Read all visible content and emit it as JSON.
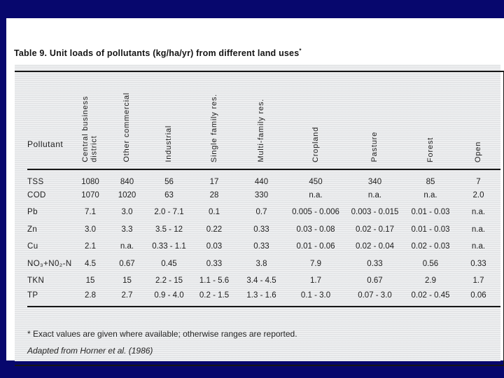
{
  "title": {
    "text": "Table 9. Unit loads of pollutants (kg/ha/yr) from different land uses",
    "superscript": "*"
  },
  "table": {
    "row_header": "Pollutant",
    "columns": [
      "Central business\ndistrict",
      "Other commercial",
      "Industrial",
      "Single family res.",
      "Multi-family res.",
      "Cropland",
      "Pasture",
      "Forest",
      "Open"
    ],
    "rows": [
      {
        "label": "TSS",
        "values": [
          "1080",
          "840",
          "56",
          "17",
          "440",
          "450",
          "340",
          "85",
          "7"
        ]
      },
      {
        "label": "COD",
        "values": [
          "1070",
          "1020",
          "63",
          "28",
          "330",
          "n.a.",
          "n.a.",
          "n.a.",
          "2.0"
        ]
      },
      {
        "label": "Pb",
        "values": [
          "7.1",
          "3.0",
          "2.0 - 7.1",
          "0.1",
          "0.7",
          "0.005 - 0.006",
          "0.003 - 0.015",
          "0.01 - 0.03",
          "n.a."
        ]
      },
      {
        "label": "Zn",
        "values": [
          "3.0",
          "3.3",
          "3.5 - 12",
          "0.22",
          "0.33",
          "0.03 - 0.08",
          "0.02 - 0.17",
          "0.01 - 0.03",
          "n.a."
        ]
      },
      {
        "label": "Cu",
        "values": [
          "2.1",
          "n.a.",
          "0.33 - 1.1",
          "0.03",
          "0.33",
          "0.01 - 0.06",
          "0.02 - 0.04",
          "0.02 - 0.03",
          "n.a."
        ]
      },
      {
        "label": "NO₃+N0₂-N",
        "values": [
          "4.5",
          "0.67",
          "0.45",
          "0.33",
          "3.8",
          "7.9",
          "0.33",
          "0.56",
          "0.33"
        ]
      },
      {
        "label": "TKN",
        "values": [
          "15",
          "15",
          "2.2 - 15",
          "1.1 - 5.6",
          "3.4 - 4.5",
          "1.7",
          "0.67",
          "2.9",
          "1.7"
        ]
      },
      {
        "label": "TP",
        "values": [
          "2.8",
          "2.7",
          "0.9 - 4.0",
          "0.2 - 1.5",
          "1.3 - 1.6",
          "0.1 - 3.0",
          "0.07 - 3.0",
          "0.02 - 0.45",
          "0.06"
        ]
      }
    ]
  },
  "footnotes": {
    "line1": "* Exact values are given where available; otherwise ranges are reported.",
    "line2": "Adapted from Horner et al. (1986)"
  },
  "colors": {
    "slide_background": "#07076d",
    "scan_background": "#ffffff",
    "table_panel": "#e8e9eb",
    "rule_lines": "#161616"
  }
}
